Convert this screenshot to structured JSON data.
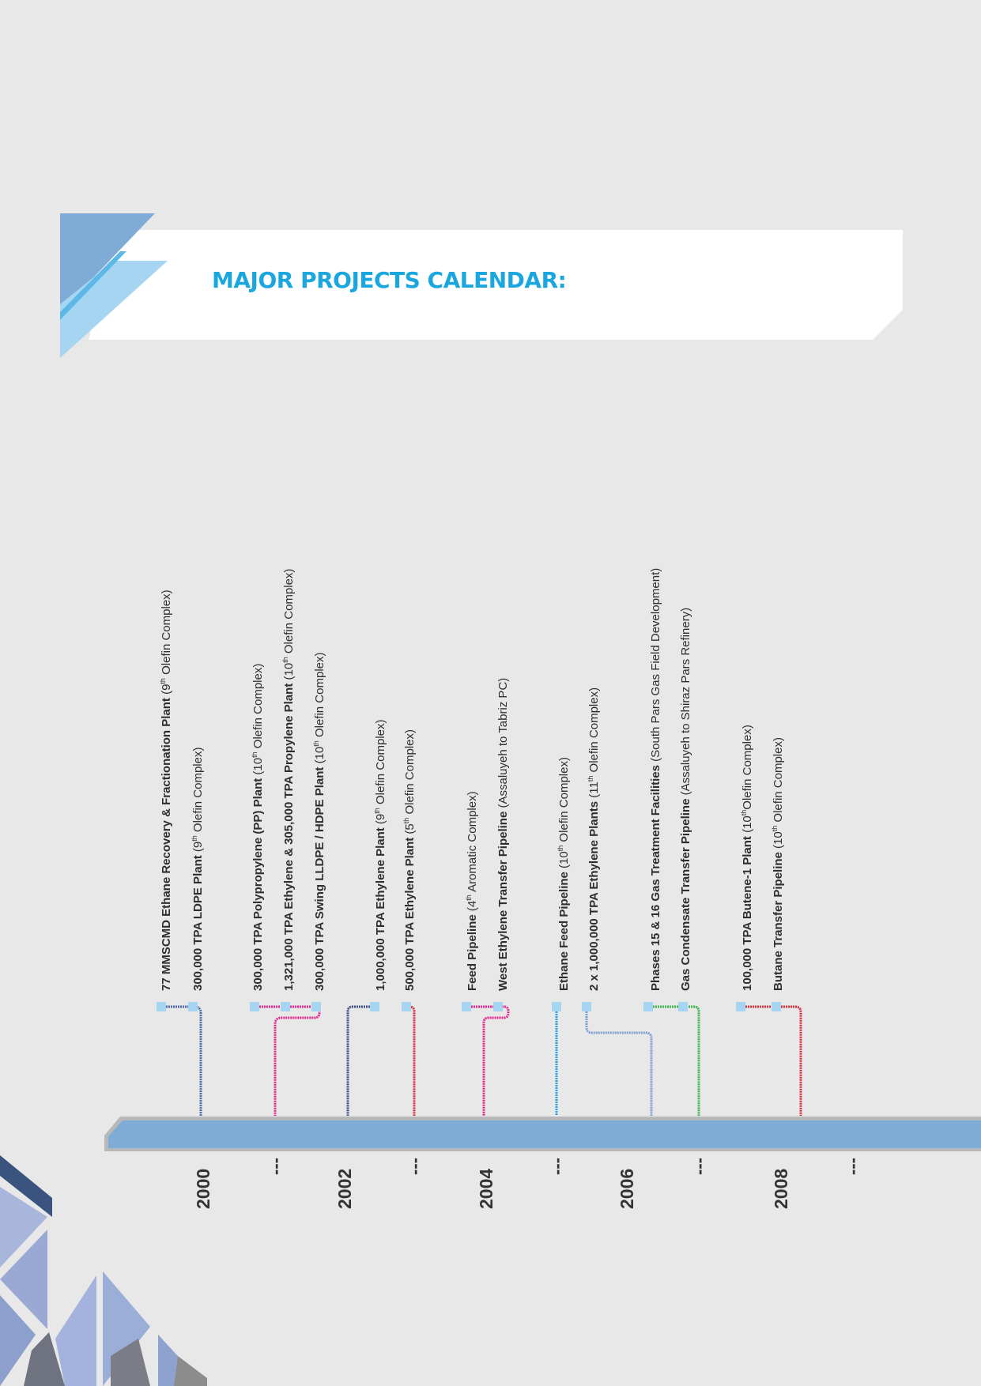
{
  "title": "MAJOR PROJECTS CALENDAR:",
  "colors": {
    "background": "#e8e8e9",
    "title": "#1aa7df",
    "timeline_bar": "#7facd6",
    "marker": "#a5d5f1"
  },
  "years": [
    {
      "label": "2000"
    },
    {
      "label": "---"
    },
    {
      "label": "2002"
    },
    {
      "label": "---"
    },
    {
      "label": "2004"
    },
    {
      "label": "---"
    },
    {
      "label": "2006"
    },
    {
      "label": "---"
    },
    {
      "label": "2008"
    },
    {
      "label": "---"
    }
  ],
  "projects": [
    {
      "name": "77 MMSCMD Ethane Recovery & Fractionation Plant",
      "pre": " (9",
      "sup": "th",
      "post": " Olefin Complex)"
    },
    {
      "name": "300,000 TPA LDPE Plant",
      "pre": " (9",
      "sup": "th",
      "post": " Olefin Complex)"
    },
    {
      "name": "300,000 TPA Polypropylene (PP) Plant",
      "pre": " (10",
      "sup": "th",
      "post": " Olefin Complex)"
    },
    {
      "name": "1,321,000 TPA Ethylene & 305,000 TPA Propylene Plant",
      "pre": " (10",
      "sup": "th",
      "post": " Olefin Complex)"
    },
    {
      "name": "300,000 TPA Swing LLDPE / HDPE Plant",
      "pre": " (10",
      "sup": "th",
      "post": " Olefin Complex)"
    },
    {
      "name": "1,000,000 TPA Ethylene Plant",
      "pre": " (9",
      "sup": "th",
      "post": " Olefin Complex)"
    },
    {
      "name": "500,000 TPA Ethylene Plant",
      "pre": " (5",
      "sup": "th",
      "post": " Olefin Complex)"
    },
    {
      "name": "Feed Pipeline",
      "pre": " (4",
      "sup": "th",
      "post": " Aromatic Complex)"
    },
    {
      "name": "West Ethylene Transfer Pipeline",
      "pre": " (Assaluyeh to Tabriz PC)",
      "sup": "",
      "post": ""
    },
    {
      "name": "Ethane Feed Pipeline",
      "pre": " (10",
      "sup": "th",
      "post": " Olefin Complex)"
    },
    {
      "name": "2 x 1,000,000 TPA Ethylene Plants",
      "pre": " (11",
      "sup": "th",
      "post": " Olefin Complex)"
    },
    {
      "name": "Phases 15 & 16 Gas Treatment Facilities",
      "pre": " (South Pars Gas Field Development)",
      "sup": "",
      "post": ""
    },
    {
      "name": "Gas Condensate Transfer Pipeline",
      "pre": " (Assaluyeh to Shiraz Pars Refinery)",
      "sup": "",
      "post": ""
    },
    {
      "name": "100,000 TPA Butene-1 Plant",
      "pre": " (10",
      "sup": "th",
      "post": "Olefin Complex)"
    },
    {
      "name": "Butane Transfer Pipeline",
      "pre": " (10",
      "sup": "th",
      "post": " Olefin Complex)"
    }
  ],
  "connectors": [
    {
      "color": "#4a6aa8",
      "year": "2000"
    },
    {
      "color": "#e0288f",
      "year": "2001"
    },
    {
      "color": "#3f5186",
      "year": "2002"
    },
    {
      "color": "#d42f3c",
      "year": "2003"
    },
    {
      "color": "#e0288f",
      "year": "2004"
    },
    {
      "color": "#2aa6de",
      "year": "2005"
    },
    {
      "color": "#7f9fd4",
      "year": "2006"
    },
    {
      "color": "#3cb54a",
      "year": "2007"
    },
    {
      "color": "#d42f3c",
      "year": "2008"
    }
  ]
}
